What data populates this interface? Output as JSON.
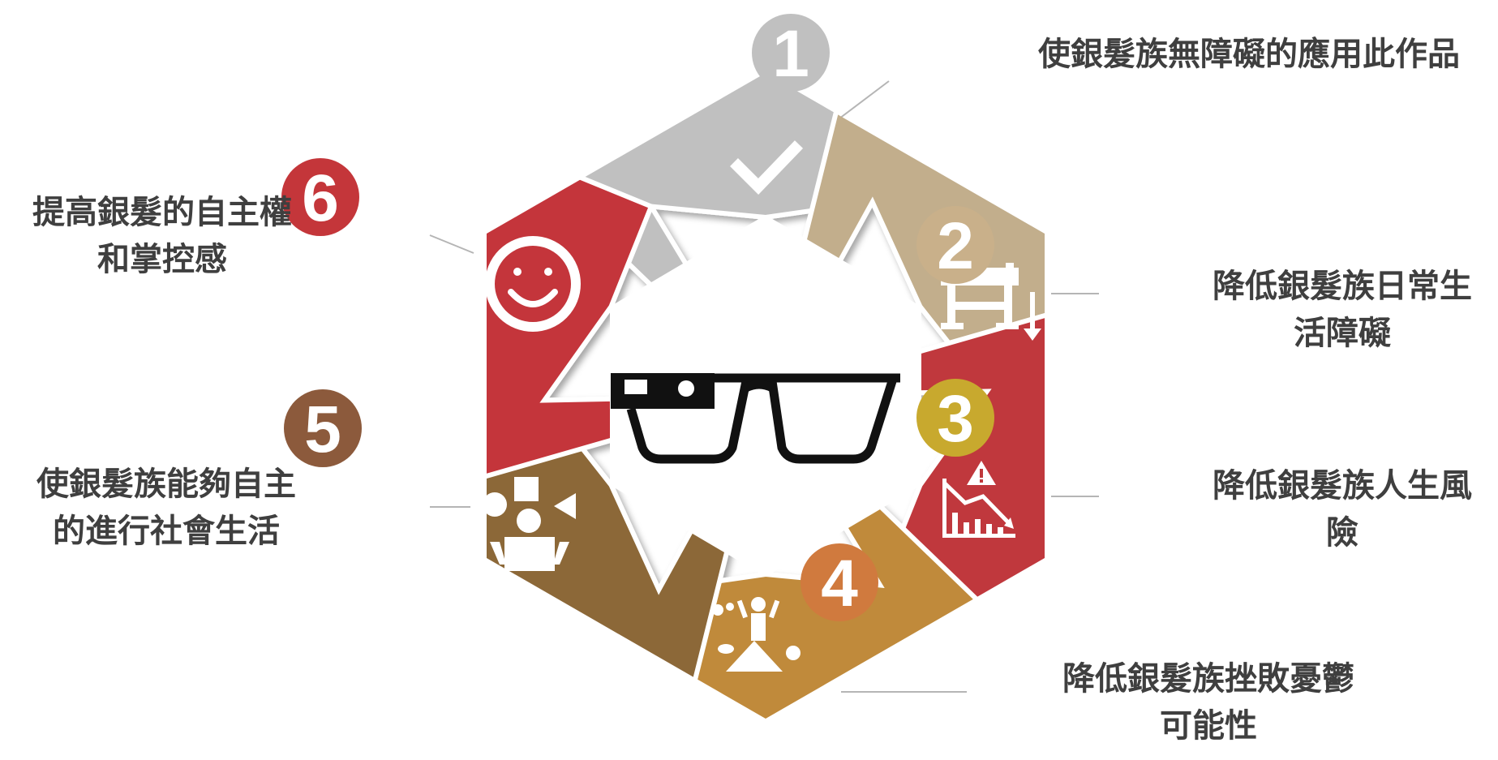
{
  "steps": [
    {
      "number": "1",
      "label": "使銀髮族無障礙的應用此作品",
      "color": "#c0c0c0",
      "icon": "checkmark-icon"
    },
    {
      "number": "2",
      "label": "降低銀髮族日常生活障礙",
      "color": "#c9b08a",
      "icon": "road-barrier-icon"
    },
    {
      "number": "3",
      "label": "降低銀髮族人生風險",
      "color": "#c8a92e",
      "icon": "risk-chart-icon"
    },
    {
      "number": "4",
      "label": "降低銀髮族挫敗憂鬱可能性",
      "color": "#d07a3e",
      "icon": "summit-achievement-icon"
    },
    {
      "number": "5",
      "label": "使銀髮族能夠自主的進行社會生活",
      "color": "#8c5a3c",
      "icon": "person-shapes-icon"
    },
    {
      "number": "6",
      "label": "提高銀髮的自主權和掌控感",
      "color": "#c4363a",
      "icon": "smiley-icon"
    }
  ],
  "segment_colors": [
    "#c0c0c0",
    "#c2ae8c",
    "#c0393c",
    "#c08a3a",
    "#8c6838",
    "#c4363a"
  ],
  "center_icon": "smart-glasses-icon"
}
